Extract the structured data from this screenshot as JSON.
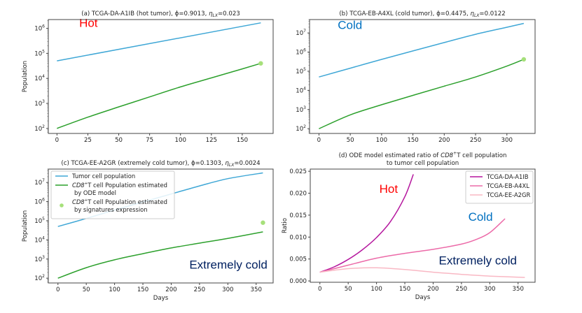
{
  "chart_data": [
    {
      "id": "a",
      "type": "line",
      "title_prefix": "(a) TCGA-DA-A1IB (hot tumor), ϕ=0.9013, ",
      "title_eta": "η",
      "title_eta_sub": "LX",
      "title_suffix": "=0.023",
      "xlabel": "",
      "ylabel": "Population",
      "yscale": "log",
      "xlim": [
        -7,
        175
      ],
      "ylim_log10": [
        1.8,
        6.35
      ],
      "xticks": [
        0,
        25,
        50,
        75,
        100,
        125,
        150
      ],
      "yticks_log10": [
        2,
        3,
        4,
        5,
        6
      ],
      "annotation": {
        "text": "Hot",
        "color": "#ff0000",
        "x": 18,
        "y_log10": 6.05
      },
      "series": [
        {
          "name": "Tumor cell population",
          "color": "#3fa7d6",
          "x": [
            0,
            165
          ],
          "log10_y": [
            4.7,
            6.22
          ],
          "curve": "linear"
        },
        {
          "name": "CD8+T cell Population estimated by ODE model",
          "color": "#2ca02c",
          "x": [
            0,
            25,
            50,
            75,
            100,
            125,
            150,
            165
          ],
          "log10_y": [
            2.0,
            2.45,
            2.86,
            3.26,
            3.66,
            4.02,
            4.38,
            4.6
          ]
        }
      ],
      "points": [
        {
          "name": "CD8+T cell Population estimated by signatures expression",
          "color": "#a6e07a",
          "x": 165,
          "log10_y": 4.6
        }
      ]
    },
    {
      "id": "b",
      "type": "line",
      "title_prefix": "(b) TCGA-EB-A4XL (cold tumor), ϕ=0.4475, ",
      "title_eta": "η",
      "title_eta_sub": "LX",
      "title_suffix": "=0.0122",
      "xlabel": "",
      "ylabel": "",
      "yscale": "log",
      "xlim": [
        -15,
        345
      ],
      "ylim_log10": [
        1.75,
        7.7
      ],
      "xticks": [
        0,
        50,
        100,
        150,
        200,
        250,
        300
      ],
      "yticks_log10": [
        2,
        3,
        4,
        5,
        6,
        7
      ],
      "annotation": {
        "text": "Cold",
        "color": "#0070c0",
        "x": 30,
        "y_log10": 7.2
      },
      "series": [
        {
          "name": "Tumor cell population",
          "color": "#3fa7d6",
          "x": [
            0,
            50,
            100,
            150,
            200,
            250,
            300,
            327
          ],
          "log10_y": [
            4.7,
            5.16,
            5.62,
            6.06,
            6.5,
            6.93,
            7.3,
            7.5
          ]
        },
        {
          "name": "CD8+T cell Population estimated by ODE model",
          "color": "#2ca02c",
          "x": [
            0,
            50,
            100,
            150,
            200,
            250,
            300,
            327
          ],
          "log10_y": [
            2.0,
            2.72,
            3.25,
            3.74,
            4.22,
            4.7,
            5.27,
            5.62
          ]
        }
      ],
      "points": [
        {
          "name": "CD8+T cell Population estimated by signatures expression",
          "color": "#a6e07a",
          "x": 327,
          "log10_y": 5.62
        }
      ]
    },
    {
      "id": "c",
      "type": "line",
      "title_prefix": "(c) TCGA-EE-A2GR (extremely cold tumor), ϕ=0.1303, ",
      "title_eta": "η",
      "title_eta_sub": "LX",
      "title_suffix": "=0.0024",
      "xlabel": "Days",
      "ylabel": "Population",
      "yscale": "log",
      "xlim": [
        -17,
        380
      ],
      "ylim_log10": [
        1.75,
        7.7
      ],
      "xticks": [
        0,
        50,
        100,
        150,
        200,
        250,
        300,
        350
      ],
      "yticks_log10": [
        2,
        3,
        4,
        5,
        6,
        7
      ],
      "annotation": {
        "text": "Extremely cold",
        "color": "#002060",
        "x": 232,
        "y_log10": 2.5
      },
      "series": [
        {
          "name": "Tumor cell population",
          "color": "#3fa7d6",
          "x": [
            0,
            50,
            100,
            150,
            200,
            250,
            300,
            362
          ],
          "log10_y": [
            4.7,
            5.12,
            5.56,
            5.98,
            6.4,
            6.82,
            7.2,
            7.5
          ]
        },
        {
          "name": "CD8+T cell Population estimated by ODE model",
          "color": "#2ca02c",
          "x": [
            0,
            50,
            100,
            150,
            200,
            250,
            300,
            362
          ],
          "log10_y": [
            2.0,
            2.55,
            2.96,
            3.28,
            3.58,
            3.83,
            4.08,
            4.42
          ]
        }
      ],
      "points": [
        {
          "name": "CD8+T cell Population estimated by signatures expression",
          "color": "#a6e07a",
          "x": 362,
          "log10_y": 4.9
        }
      ],
      "legend": {
        "placement": "top-left",
        "entries": [
          {
            "kind": "line",
            "color": "#3fa7d6",
            "line1_italic": "",
            "line1": "Tumor cell population",
            "line2": ""
          },
          {
            "kind": "line",
            "color": "#2ca02c",
            "line1_italic": "CD8",
            "line1": "T cell Population estimated",
            "line2": "by ODE model"
          },
          {
            "kind": "dot",
            "color": "#a6e07a",
            "line1_italic": "CD8",
            "line1": "T cell Population estimated",
            "line2": "by signatures expression"
          }
        ]
      }
    },
    {
      "id": "d",
      "type": "line",
      "title_line1_prefix": "(d) ODE model estimated ratio of ",
      "title_line1_italic": "CD8",
      "title_line1_suffix": "T cell population",
      "title_line2": "to tumor cell population",
      "xlabel": "Days",
      "ylabel": "Ratio",
      "yscale": "linear",
      "xlim": [
        -17,
        380
      ],
      "ylim": [
        -0.0003,
        0.0255
      ],
      "xticks": [
        0,
        50,
        100,
        150,
        200,
        250,
        300,
        350
      ],
      "yticks": [
        0.0,
        0.005,
        0.01,
        0.015,
        0.02,
        0.025
      ],
      "ytick_labels": [
        "0.000",
        "0.005",
        "0.010",
        "0.015",
        "0.020",
        "0.025"
      ],
      "annotations": [
        {
          "text": "Hot",
          "color": "#ff0000",
          "x": 105,
          "y": 0.0201
        },
        {
          "text": "Cold",
          "color": "#0070c0",
          "x": 262,
          "y": 0.0137
        },
        {
          "text": "Extremely cold",
          "color": "#002060",
          "x": 210,
          "y": 0.0038
        }
      ],
      "series": [
        {
          "name": "TCGA-DA-A1IB",
          "color": "#b5179e",
          "x": [
            0,
            25,
            50,
            75,
            100,
            125,
            150,
            165
          ],
          "y": [
            0.002,
            0.0032,
            0.0049,
            0.0071,
            0.0099,
            0.0136,
            0.0192,
            0.0243
          ]
        },
        {
          "name": "TCGA-EB-A4XL",
          "color": "#ec6aa8",
          "x": [
            0,
            50,
            100,
            150,
            200,
            250,
            275,
            300,
            327
          ],
          "y": [
            0.002,
            0.0036,
            0.0052,
            0.0063,
            0.0072,
            0.0084,
            0.0094,
            0.011,
            0.0142
          ]
        },
        {
          "name": "TCGA-EE-A2GR",
          "color": "#f9b8c4",
          "x": [
            0,
            50,
            100,
            150,
            200,
            250,
            300,
            362
          ],
          "y": [
            0.002,
            0.0028,
            0.003,
            0.0026,
            0.002,
            0.0015,
            0.0011,
            0.0008
          ]
        }
      ],
      "legend": {
        "placement": "top-right"
      }
    }
  ]
}
